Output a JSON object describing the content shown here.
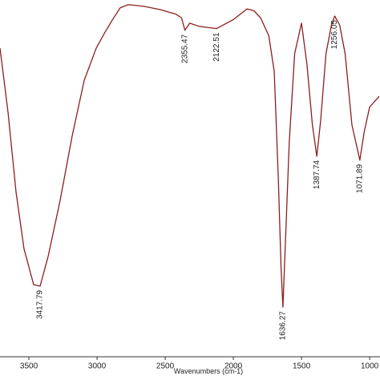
{
  "chart_data": {
    "type": "line",
    "x_label": "Wavenumbers (cm-1)",
    "xlim": [
      3712,
      924
    ],
    "ylim": [
      0,
      100
    ],
    "xticks": [
      3500,
      3000,
      2500,
      2000,
      1500,
      1000
    ],
    "series": [
      {
        "color": "#8b1e1e",
        "x": [
          3712,
          3653,
          3594,
          3536,
          3465,
          3417.79,
          3359,
          3271,
          3183,
          3094,
          3006,
          2947,
          2888,
          2830,
          2771,
          2653,
          2536,
          2420,
          2380,
          2355.47,
          2320,
          2250,
          2122.51,
          2000,
          1900,
          1850,
          1800,
          1740,
          1700,
          1670,
          1650,
          1636.27,
          1620,
          1590,
          1550,
          1500,
          1460,
          1420,
          1387.74,
          1360,
          1320,
          1280,
          1256.05,
          1220,
          1180,
          1130,
          1071.89,
          1040,
          1000,
          930
        ],
        "values": [
          86.5,
          68.5,
          46.1,
          30.3,
          20.2,
          19.8,
          28.1,
          43.8,
          61.8,
          77.5,
          86.5,
          90.6,
          94.4,
          97.8,
          98.7,
          98.2,
          97.3,
          96.0,
          95.0,
          91.5,
          93.5,
          92.6,
          92.0,
          94.5,
          97.5,
          97.0,
          95.0,
          90.0,
          80.0,
          50.0,
          25.0,
          13.9,
          30.0,
          60.0,
          85.0,
          93.5,
          82.0,
          65.0,
          56.2,
          66.0,
          85.0,
          93.0,
          95.5,
          93.0,
          85.0,
          65.0,
          55.1,
          63.0,
          70.0,
          73.0
        ]
      }
    ],
    "annotations": [
      {
        "label": "3417.79",
        "x": 3417.79,
        "y": 19.8
      },
      {
        "label": "2355.47",
        "x": 2355.47,
        "y": 91.5
      },
      {
        "label": "2122.51",
        "x": 2122.51,
        "y": 92.0
      },
      {
        "label": "1636.27",
        "x": 1636.27,
        "y": 13.9
      },
      {
        "label": "1387.74",
        "x": 1387.74,
        "y": 56.2
      },
      {
        "label": "1256.05",
        "x": 1256.05,
        "y": 95.5
      },
      {
        "label": "1071.89",
        "x": 1071.89,
        "y": 55.1
      }
    ]
  }
}
